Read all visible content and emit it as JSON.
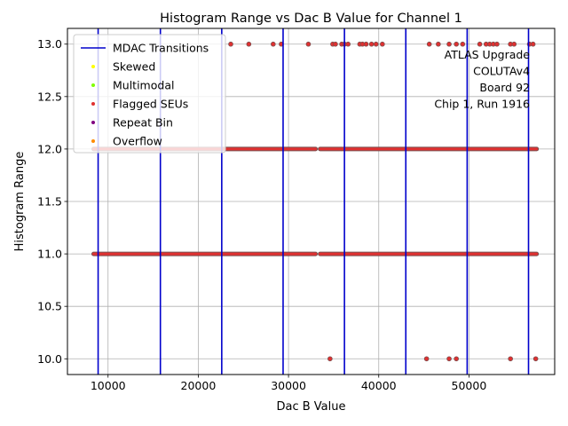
{
  "chart_data": {
    "type": "scatter",
    "title": "Histogram Range vs Dac B Value for Channel 1",
    "xlabel": "Dac B Value",
    "ylabel": "Histogram Range",
    "xlim": [
      5500,
      59500
    ],
    "ylim": [
      9.85,
      13.15
    ],
    "x_ticks": [
      10000,
      20000,
      30000,
      40000,
      50000
    ],
    "y_ticks": [
      10.0,
      10.5,
      11.0,
      11.5,
      12.0,
      12.5,
      13.0
    ],
    "x_tick_labels": [
      "10000",
      "20000",
      "30000",
      "40000",
      "50000"
    ],
    "y_tick_labels": [
      "10.0",
      "10.5",
      "11.0",
      "11.5",
      "12.0",
      "12.5",
      "13.0"
    ],
    "grid": true,
    "legend_position": "top-left",
    "mdac_transitions": [
      8900,
      15800,
      22600,
      29400,
      36200,
      43000,
      49800,
      56600
    ],
    "mdac_color": "#0000cc",
    "marker_color": "#e03030",
    "marker_edge": "#7a5050",
    "series": [
      {
        "name": "MDAC Transitions",
        "style": "line",
        "color": "#0000cc",
        "values": []
      },
      {
        "name": "Skewed",
        "style": "dot",
        "color": "#ffff00",
        "values": []
      },
      {
        "name": "Multimodal",
        "style": "dot",
        "color": "#80ff00",
        "values": []
      },
      {
        "name": "Flagged SEUs",
        "style": "dot",
        "color": "#e03030",
        "values": [
          {
            "y": 13,
            "x": 23600
          },
          {
            "y": 13,
            "x": 25600
          },
          {
            "y": 13,
            "x": 28300
          },
          {
            "y": 13,
            "x": 29200
          },
          {
            "y": 13,
            "x": 32200
          },
          {
            "y": 13,
            "x": 34900
          },
          {
            "y": 13,
            "x": 35200
          },
          {
            "y": 13,
            "x": 35900
          },
          {
            "y": 13,
            "x": 36200
          },
          {
            "y": 13,
            "x": 36600
          },
          {
            "y": 13,
            "x": 37900
          },
          {
            "y": 13,
            "x": 38200
          },
          {
            "y": 13,
            "x": 38600
          },
          {
            "y": 13,
            "x": 39200
          },
          {
            "y": 13,
            "x": 39700
          },
          {
            "y": 13,
            "x": 40400
          },
          {
            "y": 13,
            "x": 45600
          },
          {
            "y": 13,
            "x": 46600
          },
          {
            "y": 13,
            "x": 47800
          },
          {
            "y": 13,
            "x": 48600
          },
          {
            "y": 13,
            "x": 49300
          },
          {
            "y": 13,
            "x": 51200
          },
          {
            "y": 13,
            "x": 51900
          },
          {
            "y": 13,
            "x": 52300
          },
          {
            "y": 13,
            "x": 52700
          },
          {
            "y": 13,
            "x": 53100
          },
          {
            "y": 13,
            "x": 54600
          },
          {
            "y": 13,
            "x": 55000
          },
          {
            "y": 13,
            "x": 56700
          },
          {
            "y": 13,
            "x": 57100
          },
          {
            "y": 10,
            "x": 34600
          },
          {
            "y": 10,
            "x": 45300
          },
          {
            "y": 10,
            "x": 47800
          },
          {
            "y": 10,
            "x": 48600
          },
          {
            "y": 10,
            "x": 54600
          },
          {
            "y": 10,
            "x": 57400
          }
        ],
        "segments": [
          {
            "y": 12,
            "x_start": 8400,
            "x_end": 33000
          },
          {
            "y": 12,
            "x_start": 33500,
            "x_end": 57500
          },
          {
            "y": 11,
            "x_start": 8400,
            "x_end": 33000
          },
          {
            "y": 11,
            "x_start": 33500,
            "x_end": 57500
          }
        ]
      },
      {
        "name": "Repeat Bin",
        "style": "dot",
        "color": "#800080",
        "values": []
      },
      {
        "name": "Overflow",
        "style": "dot",
        "color": "#ff8c00",
        "values": []
      }
    ],
    "annotation_lines": [
      "ATLAS Upgrade",
      "COLUTAv4",
      "Board 92",
      "Chip 1, Run 1916"
    ]
  }
}
